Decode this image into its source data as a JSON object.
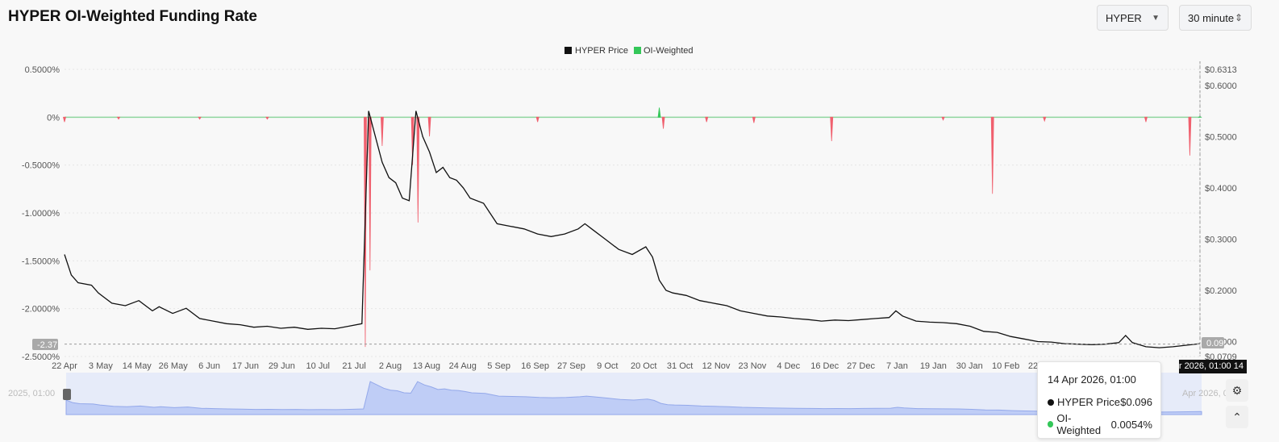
{
  "header": {
    "title": "HYPER OI-Weighted Funding Rate",
    "symbol_select": "HYPER",
    "interval_select": "30 minute"
  },
  "chart_data": {
    "type": "line",
    "title": "HYPER OI-Weighted Funding Rate",
    "legend": [
      "HYPER Price",
      "OI-Weighted"
    ],
    "legend_position": "top-center",
    "colors": {
      "price": "#111111",
      "positive_funding": "#34c759",
      "negative_funding": "#f0606e",
      "grid": "#e6e6e6"
    },
    "left_axis": {
      "label": "",
      "ticks": [
        "0.5000%",
        "0%",
        "-0.5000%",
        "-1.0000%",
        "-1.5000%",
        "-2.0000%",
        "-2.5000%"
      ],
      "range": [
        -2.5,
        0.5
      ],
      "crosshair_label": "-2.37"
    },
    "right_axis": {
      "label": "",
      "ticks": [
        "$0.6313",
        "$0.6000",
        "$0.5000",
        "$0.4000",
        "$0.3000",
        "$0.2000",
        "$0.1000",
        "$0.0709"
      ],
      "range": [
        0.0709,
        0.6313
      ],
      "crosshair_label": "0.09"
    },
    "x_ticks": [
      "22 Apr",
      "3 May",
      "14 May",
      "26 May",
      "6 Jun",
      "17 Jun",
      "29 Jun",
      "10 Jul",
      "21 Jul",
      "2 Aug",
      "13 Aug",
      "24 Aug",
      "5 Sep",
      "16 Sep",
      "27 Sep",
      "9 Oct",
      "20 Oct",
      "31 Oct",
      "12 Nov",
      "23 Nov",
      "4 Dec",
      "16 Dec",
      "27 Dec",
      "7 Jan",
      "19 Jan",
      "30 Jan",
      "10 Feb",
      "22 Feb"
    ],
    "x_crosshair_label": "14 Apr 2026, 01:00",
    "series": [
      {
        "name": "HYPER Price",
        "unit": "USD",
        "points": [
          [
            0,
            0.27
          ],
          [
            1,
            0.23
          ],
          [
            2,
            0.215
          ],
          [
            4,
            0.21
          ],
          [
            5,
            0.195
          ],
          [
            7,
            0.175
          ],
          [
            9,
            0.17
          ],
          [
            11,
            0.18
          ],
          [
            13,
            0.16
          ],
          [
            14,
            0.168
          ],
          [
            16,
            0.155
          ],
          [
            18,
            0.165
          ],
          [
            20,
            0.145
          ],
          [
            22,
            0.14
          ],
          [
            24,
            0.135
          ],
          [
            26,
            0.133
          ],
          [
            28,
            0.128
          ],
          [
            30,
            0.13
          ],
          [
            32,
            0.126
          ],
          [
            34,
            0.128
          ],
          [
            36,
            0.124
          ],
          [
            38,
            0.126
          ],
          [
            40,
            0.125
          ],
          [
            42,
            0.13
          ],
          [
            44,
            0.135
          ],
          [
            45,
            0.55
          ],
          [
            46,
            0.5
          ],
          [
            47,
            0.45
          ],
          [
            48,
            0.42
          ],
          [
            49,
            0.41
          ],
          [
            50,
            0.38
          ],
          [
            51,
            0.375
          ],
          [
            52,
            0.55
          ],
          [
            53,
            0.5
          ],
          [
            54,
            0.47
          ],
          [
            55,
            0.43
          ],
          [
            56,
            0.44
          ],
          [
            57,
            0.42
          ],
          [
            58,
            0.415
          ],
          [
            59,
            0.4
          ],
          [
            60,
            0.38
          ],
          [
            62,
            0.37
          ],
          [
            64,
            0.33
          ],
          [
            66,
            0.325
          ],
          [
            68,
            0.32
          ],
          [
            70,
            0.31
          ],
          [
            72,
            0.305
          ],
          [
            74,
            0.31
          ],
          [
            76,
            0.32
          ],
          [
            77,
            0.33
          ],
          [
            78,
            0.32
          ],
          [
            80,
            0.3
          ],
          [
            82,
            0.28
          ],
          [
            84,
            0.27
          ],
          [
            86,
            0.285
          ],
          [
            87,
            0.265
          ],
          [
            88,
            0.22
          ],
          [
            89,
            0.2
          ],
          [
            90,
            0.195
          ],
          [
            92,
            0.19
          ],
          [
            94,
            0.18
          ],
          [
            96,
            0.175
          ],
          [
            98,
            0.17
          ],
          [
            100,
            0.16
          ],
          [
            102,
            0.155
          ],
          [
            104,
            0.15
          ],
          [
            106,
            0.148
          ],
          [
            108,
            0.145
          ],
          [
            110,
            0.143
          ],
          [
            112,
            0.14
          ],
          [
            114,
            0.142
          ],
          [
            116,
            0.141
          ],
          [
            118,
            0.143
          ],
          [
            120,
            0.145
          ],
          [
            122,
            0.147
          ],
          [
            123,
            0.16
          ],
          [
            124,
            0.15
          ],
          [
            126,
            0.14
          ],
          [
            128,
            0.138
          ],
          [
            130,
            0.137
          ],
          [
            132,
            0.135
          ],
          [
            134,
            0.13
          ],
          [
            136,
            0.12
          ],
          [
            138,
            0.118
          ],
          [
            140,
            0.11
          ],
          [
            142,
            0.105
          ],
          [
            144,
            0.1
          ],
          [
            146,
            0.099
          ],
          [
            148,
            0.096
          ],
          [
            150,
            0.095
          ],
          [
            152,
            0.094
          ],
          [
            154,
            0.095
          ],
          [
            156,
            0.098
          ],
          [
            157,
            0.112
          ],
          [
            158,
            0.098
          ],
          [
            160,
            0.09
          ],
          [
            162,
            0.088
          ],
          [
            164,
            0.09
          ],
          [
            166,
            0.093
          ],
          [
            168,
            0.096
          ]
        ]
      },
      {
        "name": "OI-Weighted",
        "unit": "%",
        "spikes": [
          [
            0,
            -0.05
          ],
          [
            8,
            -0.02
          ],
          [
            20,
            -0.02
          ],
          [
            30,
            -0.02
          ],
          [
            44.5,
            -2.4
          ],
          [
            45.2,
            -1.6
          ],
          [
            47,
            -0.3
          ],
          [
            51.5,
            -0.5
          ],
          [
            52.3,
            -1.1
          ],
          [
            54,
            -0.2
          ],
          [
            70,
            -0.05
          ],
          [
            88,
            0.1
          ],
          [
            88.6,
            -0.12
          ],
          [
            95,
            -0.05
          ],
          [
            102,
            -0.06
          ],
          [
            113.5,
            -0.25
          ],
          [
            130,
            -0.03
          ],
          [
            137.3,
            -0.8
          ],
          [
            145,
            -0.04
          ],
          [
            160,
            -0.05
          ],
          [
            166.5,
            -0.4
          ],
          [
            168,
            0.01
          ]
        ]
      }
    ]
  },
  "navigator": {
    "left_label": "2025, 01:00",
    "right_label": "Apr 2026, 01:00"
  },
  "tooltip": {
    "date": "14 Apr 2026, 01:00",
    "rows": [
      {
        "label": "HYPER Price",
        "value": "$0.096",
        "color": "#111111"
      },
      {
        "label": "OI-Weighted",
        "value": "0.0054%",
        "color": "#34c759"
      }
    ]
  },
  "buttons": {
    "settings_icon": "gear-icon",
    "collapse_icon": "chevron-up-icon"
  }
}
